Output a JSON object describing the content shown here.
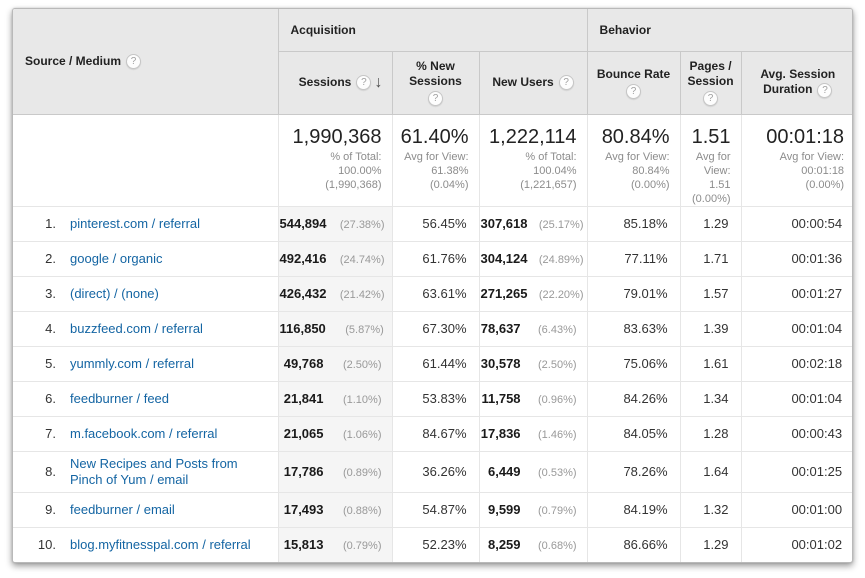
{
  "colors": {
    "link_blue": "#1465a3",
    "header_bg": "#e8e8e8",
    "sorted_column_bg": "#f5f5f5",
    "percent_gray": "#999999"
  },
  "icons": {
    "help": "?",
    "sort_desc": "↓"
  },
  "table": {
    "source_header": "Source / Medium",
    "groups": [
      {
        "label": "Acquisition"
      },
      {
        "label": "Behavior"
      }
    ],
    "columns": [
      {
        "label": "Sessions"
      },
      {
        "label": "% New Sessions"
      },
      {
        "label": "New Users"
      },
      {
        "label": "Bounce Rate"
      },
      {
        "label": "Pages / Session"
      },
      {
        "label": "Avg. Session Duration"
      }
    ],
    "summary": [
      {
        "value": "1,990,368",
        "sub": [
          "% of Total:",
          "100.00%",
          "(1,990,368)"
        ]
      },
      {
        "value": "61.40%",
        "sub": [
          "Avg for View:",
          "61.38%",
          "(0.04%)"
        ]
      },
      {
        "value": "1,222,114",
        "sub": [
          "% of Total:",
          "100.04%",
          "(1,221,657)"
        ]
      },
      {
        "value": "80.84%",
        "sub": [
          "Avg for View:",
          "80.84%",
          "(0.00%)"
        ]
      },
      {
        "value": "1.51",
        "sub": [
          "Avg for",
          "View: 1.51",
          "(0.00%)"
        ]
      },
      {
        "value": "00:01:18",
        "sub": [
          "Avg for View:",
          "00:01:18",
          "(0.00%)"
        ]
      }
    ],
    "rows": [
      {
        "rank": "1.",
        "source": "pinterest.com / referral",
        "sessions": "544,894",
        "sessions_pct": "(27.38%)",
        "pct_new_sessions": "56.45%",
        "new_users": "307,618",
        "new_users_pct": "(25.17%)",
        "bounce_rate": "85.18%",
        "pages_per_session": "1.29",
        "avg_duration": "00:00:54"
      },
      {
        "rank": "2.",
        "source": "google / organic",
        "sessions": "492,416",
        "sessions_pct": "(24.74%)",
        "pct_new_sessions": "61.76%",
        "new_users": "304,124",
        "new_users_pct": "(24.89%)",
        "bounce_rate": "77.11%",
        "pages_per_session": "1.71",
        "avg_duration": "00:01:36"
      },
      {
        "rank": "3.",
        "source": "(direct) / (none)",
        "sessions": "426,432",
        "sessions_pct": "(21.42%)",
        "pct_new_sessions": "63.61%",
        "new_users": "271,265",
        "new_users_pct": "(22.20%)",
        "bounce_rate": "79.01%",
        "pages_per_session": "1.57",
        "avg_duration": "00:01:27"
      },
      {
        "rank": "4.",
        "source": "buzzfeed.com / referral",
        "sessions": "116,850",
        "sessions_pct": "(5.87%)",
        "pct_new_sessions": "67.30%",
        "new_users": "78,637",
        "new_users_pct": "(6.43%)",
        "bounce_rate": "83.63%",
        "pages_per_session": "1.39",
        "avg_duration": "00:01:04"
      },
      {
        "rank": "5.",
        "source": "yummly.com / referral",
        "sessions": "49,768",
        "sessions_pct": "(2.50%)",
        "pct_new_sessions": "61.44%",
        "new_users": "30,578",
        "new_users_pct": "(2.50%)",
        "bounce_rate": "75.06%",
        "pages_per_session": "1.61",
        "avg_duration": "00:02:18"
      },
      {
        "rank": "6.",
        "source": "feedburner / feed",
        "sessions": "21,841",
        "sessions_pct": "(1.10%)",
        "pct_new_sessions": "53.83%",
        "new_users": "11,758",
        "new_users_pct": "(0.96%)",
        "bounce_rate": "84.26%",
        "pages_per_session": "1.34",
        "avg_duration": "00:01:04"
      },
      {
        "rank": "7.",
        "source": "m.facebook.com / referral",
        "sessions": "21,065",
        "sessions_pct": "(1.06%)",
        "pct_new_sessions": "84.67%",
        "new_users": "17,836",
        "new_users_pct": "(1.46%)",
        "bounce_rate": "84.05%",
        "pages_per_session": "1.28",
        "avg_duration": "00:00:43"
      },
      {
        "rank": "8.",
        "source": "New Recipes and Posts from Pinch of Yum / email",
        "sessions": "17,786",
        "sessions_pct": "(0.89%)",
        "pct_new_sessions": "36.26%",
        "new_users": "6,449",
        "new_users_pct": "(0.53%)",
        "bounce_rate": "78.26%",
        "pages_per_session": "1.64",
        "avg_duration": "00:01:25"
      },
      {
        "rank": "9.",
        "source": "feedburner / email",
        "sessions": "17,493",
        "sessions_pct": "(0.88%)",
        "pct_new_sessions": "54.87%",
        "new_users": "9,599",
        "new_users_pct": "(0.79%)",
        "bounce_rate": "84.19%",
        "pages_per_session": "1.32",
        "avg_duration": "00:01:00"
      },
      {
        "rank": "10.",
        "source": "blog.myfitnesspal.com / referral",
        "sessions": "15,813",
        "sessions_pct": "(0.79%)",
        "pct_new_sessions": "52.23%",
        "new_users": "8,259",
        "new_users_pct": "(0.68%)",
        "bounce_rate": "86.66%",
        "pages_per_session": "1.29",
        "avg_duration": "00:01:02"
      }
    ]
  }
}
